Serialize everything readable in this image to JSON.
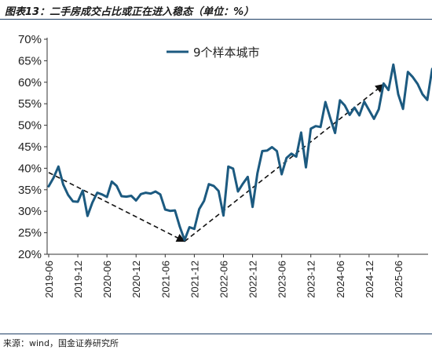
{
  "header": {
    "title": "图表13：二手房成交占比或正在进入稳态（单位：%）"
  },
  "footer": {
    "source": "来源：wind，国金证券研究所"
  },
  "colors": {
    "series": "#1c5a80",
    "trend": "#111111",
    "rule": "#1f3f66"
  },
  "chart_data": {
    "type": "line",
    "title": "图表13：二手房成交占比或正在进入稳态（单位：%）",
    "xlabel": "",
    "ylabel": "",
    "ylim": [
      20,
      70
    ],
    "yticks": [
      "20%",
      "25%",
      "30%",
      "35%",
      "40%",
      "45%",
      "50%",
      "55%",
      "60%",
      "65%",
      "70%"
    ],
    "xticks": [
      "2019-06",
      "2019-12",
      "2020-06",
      "2020-12",
      "2021-06",
      "2021-12",
      "2022-06",
      "2022-12",
      "2023-06",
      "2023-12",
      "2024-06",
      "2024-12",
      "2025-06"
    ],
    "legend": {
      "position": "top-center"
    },
    "grid": false,
    "series": [
      {
        "name": "9个样本城市",
        "start": "2019-06",
        "frequency": "monthly",
        "values": [
          35.8,
          37.8,
          40.4,
          36.2,
          33.8,
          32.3,
          32.2,
          34.8,
          28.9,
          32.0,
          34.3,
          33.9,
          33.3,
          36.9,
          35.9,
          33.5,
          33.4,
          33.6,
          32.5,
          34.0,
          34.3,
          34.1,
          34.6,
          33.9,
          30.4,
          30.1,
          30.2,
          26.4,
          23.3,
          26.3,
          25.9,
          30.5,
          32.4,
          36.3,
          35.9,
          34.7,
          29.0,
          40.4,
          39.9,
          34.6,
          36.4,
          38.0,
          31.0,
          38.8,
          44.0,
          44.1,
          44.9,
          44.0,
          38.6,
          42.4,
          43.4,
          42.7,
          48.3,
          40.2,
          49.2,
          49.8,
          49.6,
          55.4,
          51.7,
          48.2,
          55.8,
          54.6,
          52.4,
          54.1,
          52.3,
          55.5,
          53.5,
          51.5,
          53.7,
          59.7,
          58.2,
          64.1,
          57.2,
          53.8,
          62.4,
          61.2,
          59.6,
          57.2,
          55.9,
          63.1
        ]
      }
    ],
    "trendlines": [
      {
        "from": [
          "2019-06",
          39.0
        ],
        "to": [
          "2021-10",
          23.0
        ]
      },
      {
        "from": [
          "2021-10",
          23.0
        ],
        "to": [
          "2025-03",
          59.5
        ]
      }
    ]
  }
}
